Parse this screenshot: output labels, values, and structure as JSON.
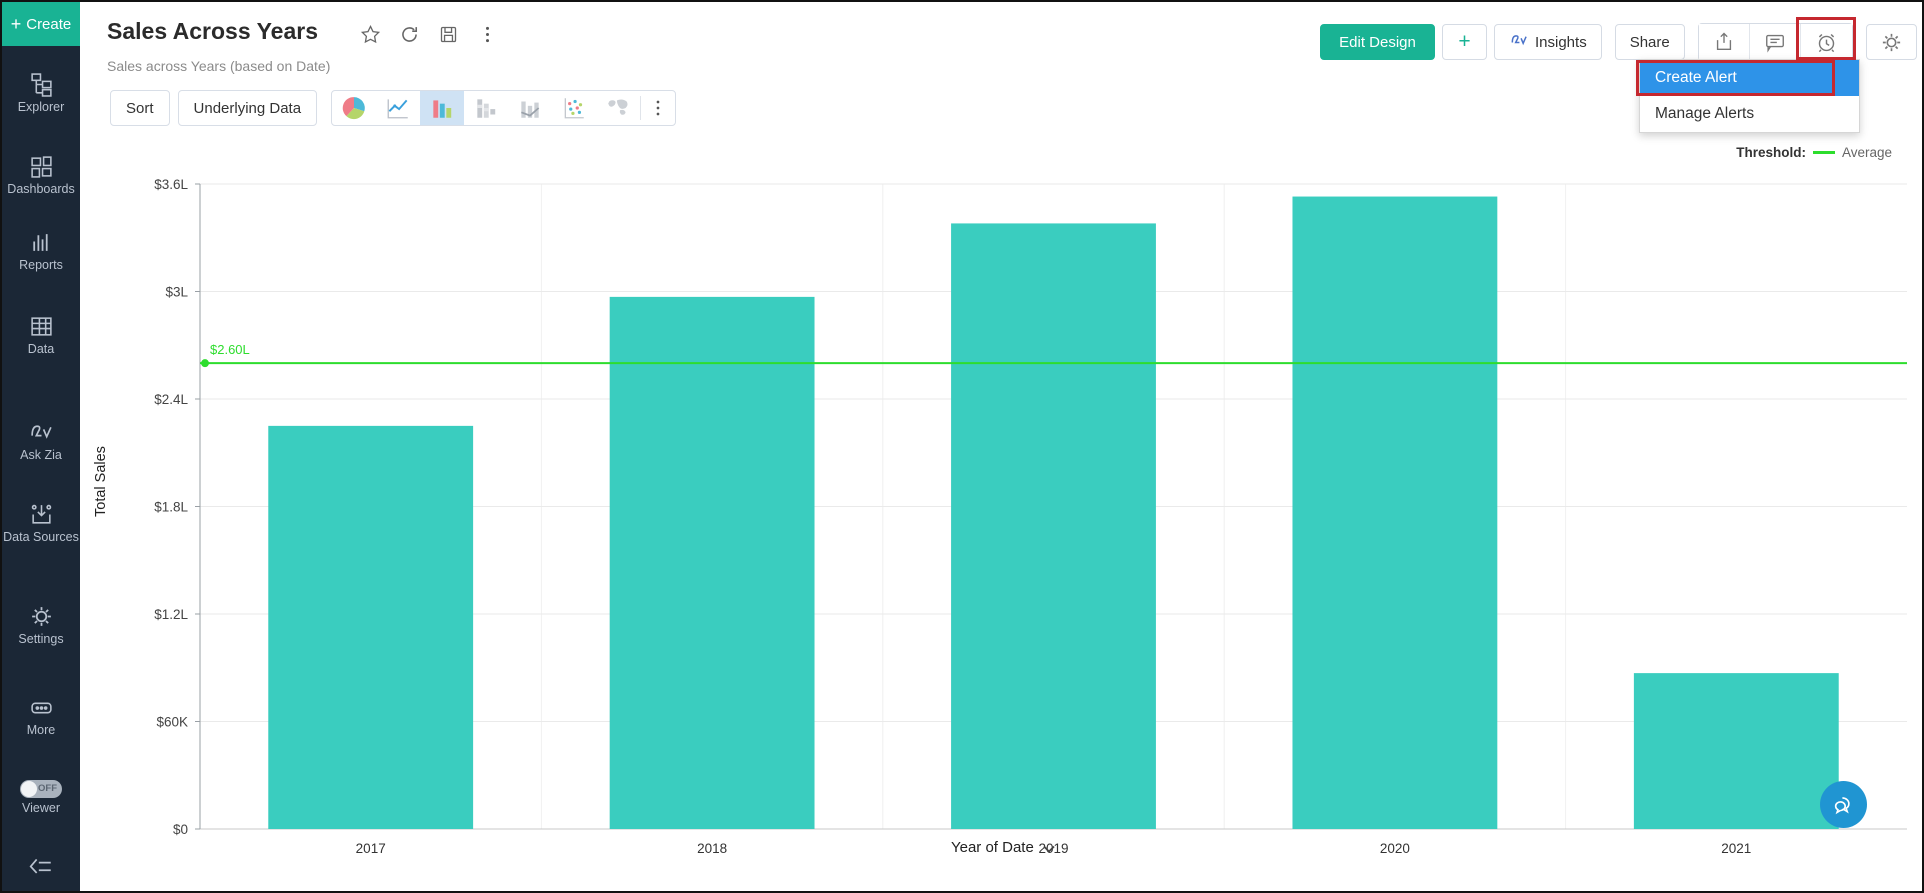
{
  "colors": {
    "accent_green": "#19b394",
    "sidebar_bg": "#1b2736",
    "menu_highlight_blue": "#2e93e8",
    "annotation_red": "#c5282f",
    "active_icon_bg": "#cfe2f4",
    "fab_blue": "#2095d2"
  },
  "sidebar": {
    "create_label": "Create",
    "items": [
      {
        "id": "explorer",
        "label": "Explorer"
      },
      {
        "id": "dashboards",
        "label": "Dashboards"
      },
      {
        "id": "reports",
        "label": "Reports"
      },
      {
        "id": "data",
        "label": "Data"
      },
      {
        "id": "ask-zia",
        "label": "Ask Zia"
      },
      {
        "id": "data-sources",
        "label": "Data Sources"
      },
      {
        "id": "settings",
        "label": "Settings"
      },
      {
        "id": "more",
        "label": "More"
      }
    ],
    "viewer": {
      "label": "Viewer",
      "state": "OFF"
    }
  },
  "header": {
    "title": "Sales Across Years",
    "subtitle": "Sales across Years (based on Date)",
    "buttons": {
      "edit_design": "Edit Design",
      "add": "+",
      "insights": "Insights",
      "share": "Share"
    },
    "icons": [
      "favorite-star",
      "refresh",
      "save",
      "more-kebab",
      "export",
      "comment",
      "alert-clock",
      "settings-gear"
    ]
  },
  "alert_menu": {
    "items": [
      {
        "label": "Create Alert",
        "highlighted": true
      },
      {
        "label": "Manage Alerts",
        "highlighted": false
      }
    ]
  },
  "toolbar": {
    "sort_label": "Sort",
    "underlying_data_label": "Underlying Data",
    "chart_types": [
      "pie",
      "line",
      "bar",
      "stacked-bar",
      "combo-bar",
      "scatter",
      "map",
      "more"
    ],
    "active_chart_type": "bar"
  },
  "legend": {
    "prefix": "Threshold:",
    "entry": "Average"
  },
  "chart_data": {
    "type": "bar",
    "title": "",
    "categories": [
      "2017",
      "2018",
      "2019",
      "2020",
      "2021"
    ],
    "series": [
      {
        "name": "Total Sales",
        "values": [
          2.25,
          2.97,
          3.38,
          3.53,
          0.87
        ]
      }
    ],
    "values_unit": "lakhs of dollars (L)",
    "xlabel": "Year of Date",
    "ylabel": "Total Sales",
    "ylim": [
      0,
      3.6
    ],
    "y_ticks": [
      {
        "label": "$0",
        "value": 0
      },
      {
        "label": "$60K",
        "value": 0.6
      },
      {
        "label": "$1.2L",
        "value": 1.2
      },
      {
        "label": "$1.8L",
        "value": 1.8
      },
      {
        "label": "$2.4L",
        "value": 2.4
      },
      {
        "label": "$3L",
        "value": 3.0
      },
      {
        "label": "$3.6L",
        "value": 3.6
      }
    ],
    "threshold": {
      "name": "Average",
      "label": "$2.60L",
      "value": 2.6,
      "color": "#2ddd2d"
    },
    "bar_color": "#3acdbf",
    "grid": true,
    "legend_position": "top-right"
  }
}
